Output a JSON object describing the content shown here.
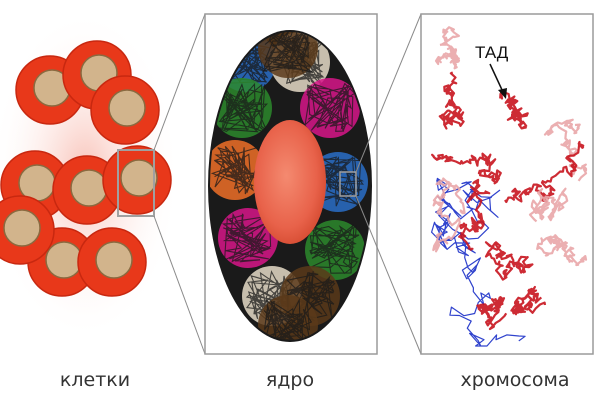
{
  "panels": {
    "cells": {
      "caption": "клетки"
    },
    "nucleus": {
      "caption": "ядро"
    },
    "chromosome": {
      "caption": "хромосома",
      "annotation": "ТАД"
    }
  },
  "colors": {
    "cell_body": "#e8381a",
    "cell_nucleus": "#d2b48c",
    "frame": "#8a8a8a",
    "nucleus_center": "#e8624a",
    "chromatin": [
      "#2d8a2d",
      "#5a3a1a",
      "#e6dcc8",
      "#d8168a",
      "#f07028",
      "#2a6fc8"
    ],
    "chromosome_main": "#c8141e",
    "chromosome_light": "#e9a6a8",
    "chromosome_link": "#1a2fc8"
  }
}
